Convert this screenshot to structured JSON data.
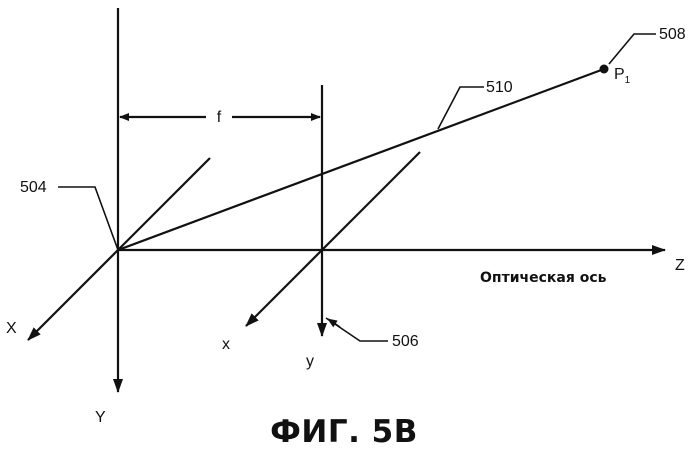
{
  "figure": {
    "caption": "ФИГ. 5B",
    "axes": {
      "X": "X",
      "Y": "Y",
      "Z": "Z",
      "x": "x",
      "y": "y"
    },
    "focal_length_label": "f",
    "optical_axis_label": "Оптическая ось",
    "point": {
      "name": "P",
      "subscript": "1"
    },
    "reference_numerals": {
      "camera_center": "504",
      "image_plane": "506",
      "point": "508",
      "ray": "510"
    }
  }
}
